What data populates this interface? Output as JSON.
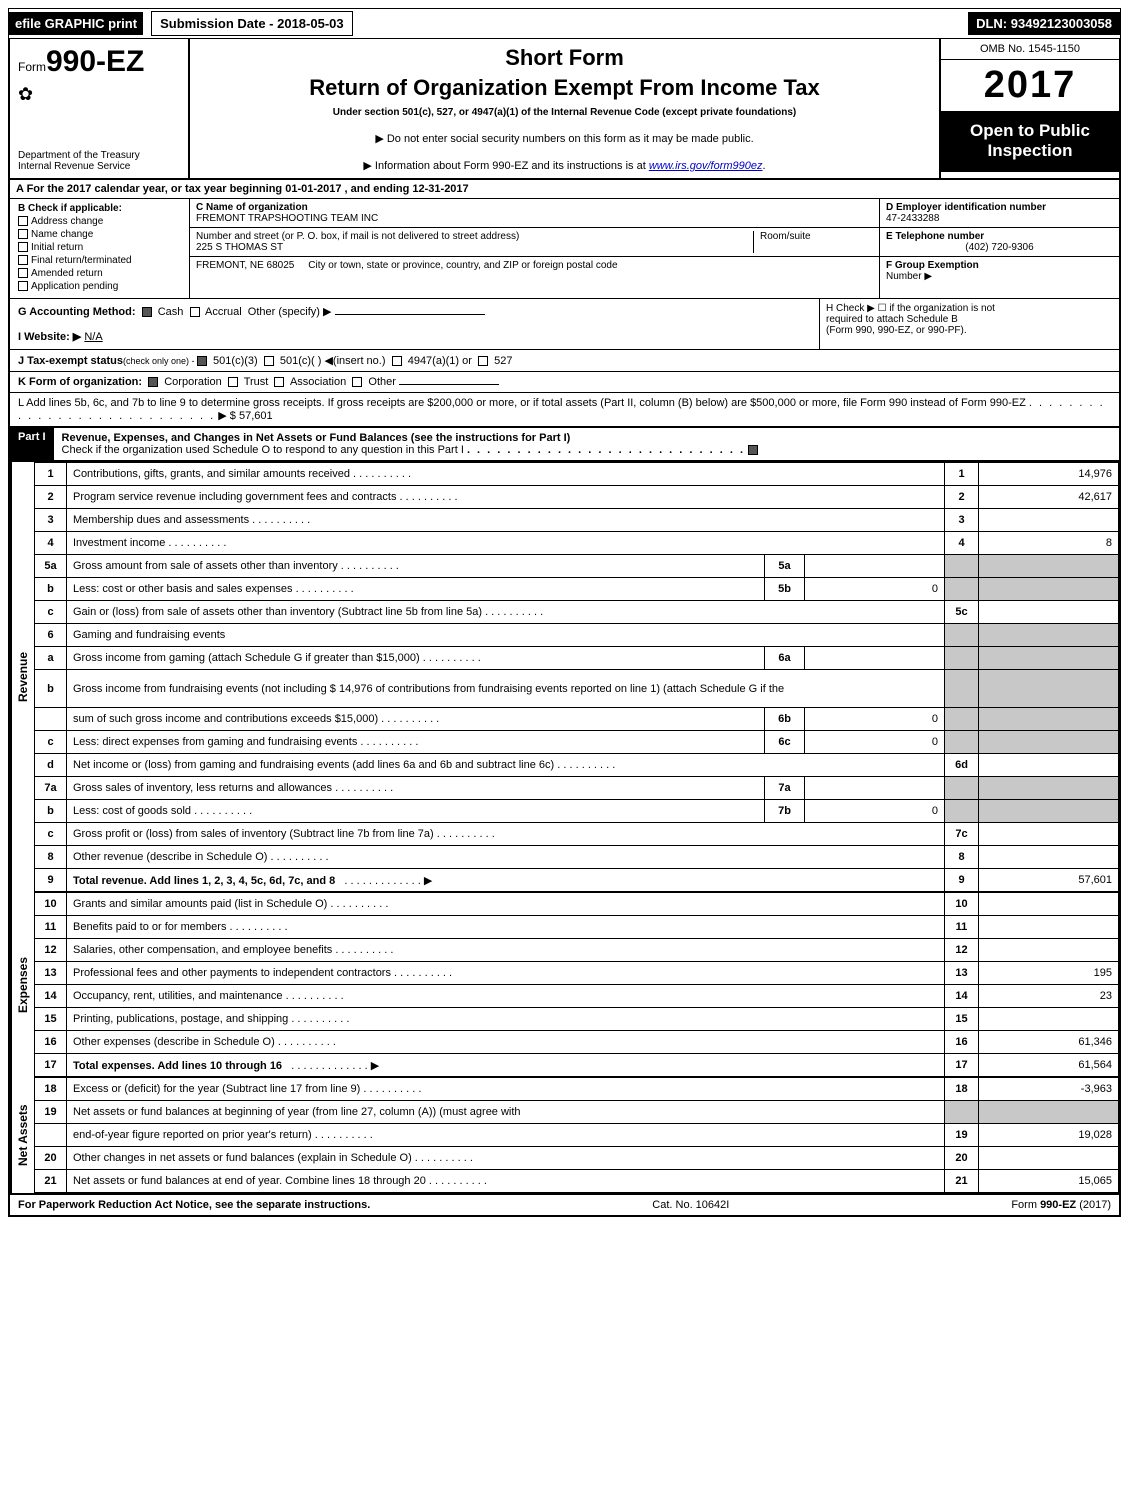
{
  "topbar": {
    "efile": "efile GRAPHIC print",
    "subdate_label": "Submission Date - ",
    "subdate": "2018-05-03",
    "dln_label": "DLN: ",
    "dln": "93492123003058"
  },
  "header": {
    "form_prefix": "Form",
    "form_no": "990-EZ",
    "dept1": "Department of the Treasury",
    "dept2": "Internal Revenue Service",
    "short": "Short Form",
    "title": "Return of Organization Exempt From Income Tax",
    "sub": "Under section 501(c), 527, or 4947(a)(1) of the Internal Revenue Code (except private foundations)",
    "note1": "▶ Do not enter social security numbers on this form as it may be made public.",
    "note2_pre": "▶ Information about Form 990-EZ and its instructions is at ",
    "note2_link": "www.irs.gov/form990ez",
    "omb": "OMB No. 1545-1150",
    "year": "2017",
    "open1": "Open to Public",
    "open2": "Inspection"
  },
  "lineA": {
    "text_pre": "A  For the 2017 calendar year, or tax year beginning ",
    "begin": "01-01-2017",
    "mid": ", and ending ",
    "end": "12-31-2017"
  },
  "B": {
    "label": "B  Check if applicable:",
    "opts": [
      "Address change",
      "Name change",
      "Initial return",
      "Final return/terminated",
      "Amended return",
      "Application pending"
    ]
  },
  "C": {
    "label": "C Name of organization",
    "name": "FREMONT TRAPSHOOTING TEAM INC",
    "addr_label": "Number and street (or P. O. box, if mail is not delivered to street address)",
    "roomsuite": "Room/suite",
    "addr": "225 S THOMAS ST",
    "city_label": "City or town, state or province, country, and ZIP or foreign postal code",
    "city": "FREMONT, NE  68025"
  },
  "D": {
    "label": "D Employer identification number",
    "val": "47-2433288"
  },
  "E": {
    "label": "E Telephone number",
    "val": "(402) 720-9306"
  },
  "F": {
    "label": "F Group Exemption",
    "label2": "Number   ▶"
  },
  "G": {
    "label": "G Accounting Method:",
    "opts": [
      "Cash",
      "Accrual"
    ],
    "other": "Other (specify) ▶"
  },
  "H": {
    "text1": "H   Check ▶  ☐  if the organization is not",
    "text2": "required to attach Schedule B",
    "text3": "(Form 990, 990-EZ, or 990-PF)."
  },
  "I": {
    "label": "I Website: ▶",
    "val": "N/A"
  },
  "J": {
    "label": "J Tax-exempt status",
    "sub": "(check only one) - ",
    "opts": [
      "501(c)(3)",
      "501(c)(  ) ◀(insert no.)",
      "4947(a)(1) or",
      "527"
    ]
  },
  "K": {
    "label": "K Form of organization:",
    "opts": [
      "Corporation",
      "Trust",
      "Association",
      "Other"
    ]
  },
  "L": {
    "text": "L Add lines 5b, 6c, and 7b to line 9 to determine gross receipts. If gross receipts are $200,000 or more, or if total assets (Part II, column (B) below) are $500,000 or more, file Form 990 instead of Form 990-EZ",
    "amt_label": "▶ $ ",
    "amt": "57,601"
  },
  "part1": {
    "label": "Part I",
    "title": "Revenue, Expenses, and Changes in Net Assets or Fund Balances (see the instructions for Part I)",
    "check_note": "Check if the organization used Schedule O to respond to any question in this Part I"
  },
  "sections": {
    "revenue": "Revenue",
    "expenses": "Expenses",
    "netassets": "Net Assets"
  },
  "lines": [
    {
      "n": "1",
      "desc": "Contributions, gifts, grants, and similar amounts received",
      "box": "1",
      "amt": "14,976"
    },
    {
      "n": "2",
      "desc": "Program service revenue including government fees and contracts",
      "box": "2",
      "amt": "42,617"
    },
    {
      "n": "3",
      "desc": "Membership dues and assessments",
      "box": "3",
      "amt": ""
    },
    {
      "n": "4",
      "desc": "Investment income",
      "box": "4",
      "amt": "8"
    },
    {
      "n": "5a",
      "desc": "Gross amount from sale of assets other than inventory",
      "mid": "5a",
      "midv": "",
      "grey": true
    },
    {
      "n": "b",
      "desc": "Less: cost or other basis and sales expenses",
      "mid": "5b",
      "midv": "0",
      "grey": true
    },
    {
      "n": "c",
      "desc": "Gain or (loss) from sale of assets other than inventory (Subtract line 5b from line 5a)",
      "box": "5c",
      "amt": ""
    },
    {
      "n": "6",
      "desc": "Gaming and fundraising events",
      "grey": true,
      "noline": true
    },
    {
      "n": "a",
      "desc": "Gross income from gaming (attach Schedule G if greater than $15,000)",
      "mid": "6a",
      "midv": "",
      "grey": true
    },
    {
      "n": "b",
      "desc": "Gross income from fundraising events (not including $  14,976       of contributions from fundraising events reported on line 1) (attach Schedule G if the",
      "grey": true,
      "tall": true
    },
    {
      "n": "",
      "desc": "sum of such gross income and contributions exceeds $15,000)",
      "mid": "6b",
      "midv": "0",
      "grey": true
    },
    {
      "n": "c",
      "desc": "Less: direct expenses from gaming and fundraising events",
      "mid": "6c",
      "midv": "0",
      "grey": true
    },
    {
      "n": "d",
      "desc": "Net income or (loss) from gaming and fundraising events (add lines 6a and 6b and subtract line 6c)",
      "box": "6d",
      "amt": ""
    },
    {
      "n": "7a",
      "desc": "Gross sales of inventory, less returns and allowances",
      "mid": "7a",
      "midv": "",
      "grey": true
    },
    {
      "n": "b",
      "desc": "Less: cost of goods sold",
      "mid": "7b",
      "midv": "0",
      "grey": true
    },
    {
      "n": "c",
      "desc": "Gross profit or (loss) from sales of inventory (Subtract line 7b from line 7a)",
      "box": "7c",
      "amt": ""
    },
    {
      "n": "8",
      "desc": "Other revenue (describe in Schedule O)",
      "box": "8",
      "amt": ""
    },
    {
      "n": "9",
      "desc": "Total revenue. Add lines 1, 2, 3, 4, 5c, 6d, 7c, and 8",
      "box": "9",
      "amt": "57,601",
      "bold": true,
      "arrow": true
    }
  ],
  "exp_lines": [
    {
      "n": "10",
      "desc": "Grants and similar amounts paid (list in Schedule O)",
      "box": "10",
      "amt": ""
    },
    {
      "n": "11",
      "desc": "Benefits paid to or for members",
      "box": "11",
      "amt": ""
    },
    {
      "n": "12",
      "desc": "Salaries, other compensation, and employee benefits",
      "box": "12",
      "amt": ""
    },
    {
      "n": "13",
      "desc": "Professional fees and other payments to independent contractors",
      "box": "13",
      "amt": "195"
    },
    {
      "n": "14",
      "desc": "Occupancy, rent, utilities, and maintenance",
      "box": "14",
      "amt": "23"
    },
    {
      "n": "15",
      "desc": "Printing, publications, postage, and shipping",
      "box": "15",
      "amt": ""
    },
    {
      "n": "16",
      "desc": "Other expenses (describe in Schedule O)",
      "box": "16",
      "amt": "61,346"
    },
    {
      "n": "17",
      "desc": "Total expenses. Add lines 10 through 16",
      "box": "17",
      "amt": "61,564",
      "bold": true,
      "arrow": true
    }
  ],
  "na_lines": [
    {
      "n": "18",
      "desc": "Excess or (deficit) for the year (Subtract line 17 from line 9)",
      "box": "18",
      "amt": "-3,963"
    },
    {
      "n": "19",
      "desc": "Net assets or fund balances at beginning of year (from line 27, column (A)) (must agree with",
      "greytop": true
    },
    {
      "n": "",
      "desc": "end-of-year figure reported on prior year's return)",
      "box": "19",
      "amt": "19,028"
    },
    {
      "n": "20",
      "desc": "Other changes in net assets or fund balances (explain in Schedule O)",
      "box": "20",
      "amt": ""
    },
    {
      "n": "21",
      "desc": "Net assets or fund balances at end of year. Combine lines 18 through 20",
      "box": "21",
      "amt": "15,065"
    }
  ],
  "footer": {
    "left": "For Paperwork Reduction Act Notice, see the separate instructions.",
    "mid": "Cat. No. 10642I",
    "right_pre": "Form ",
    "right_bold": "990-EZ",
    "right_suf": " (2017)"
  }
}
